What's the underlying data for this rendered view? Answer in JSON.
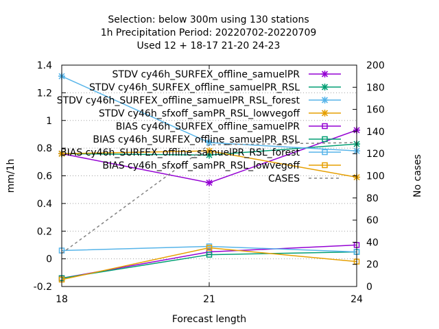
{
  "chart_data": {
    "type": "line",
    "title_lines": [
      "Selection: below 300m using   130 stations",
      "1h Precipitation   Period: 20220702-20220709",
      "Used  12 + 18-17 21-20 24-23"
    ],
    "xlabel": "Forecast length",
    "ylabel": "mm/1h",
    "y2label": "No cases",
    "x": [
      18,
      21,
      24
    ],
    "x_ticks": [
      "18",
      "21",
      "24"
    ],
    "xlim": [
      18,
      24
    ],
    "ylim": [
      -0.2,
      1.4
    ],
    "y_ticks": [
      "-0.2",
      "0",
      "0.2",
      "0.4",
      "0.6",
      "0.8",
      "1",
      "1.2",
      "1.4"
    ],
    "y2lim": [
      0,
      200
    ],
    "y2_ticks": [
      "0",
      "20",
      "40",
      "60",
      "80",
      "100",
      "120",
      "140",
      "160",
      "180",
      "200"
    ],
    "grid": true,
    "legend_position": "top-right",
    "series": [
      {
        "name": "STDV cy46h_SURFEX_offline_samuelPR",
        "color": "#9400d3",
        "marker": "x",
        "axis": "y",
        "values": [
          0.76,
          0.55,
          0.93
        ]
      },
      {
        "name": "STDV cy46h_SURFEX_offline_samuelPR_RSL",
        "color": "#009e73",
        "marker": "x",
        "axis": "y",
        "values": [
          0.76,
          0.75,
          0.83
        ]
      },
      {
        "name": "STDV cy46h_SURFEX_offline_samuelPR_RSL_forest",
        "color": "#56b4e9",
        "marker": "x",
        "axis": "y",
        "values": [
          1.32,
          0.84,
          0.78
        ]
      },
      {
        "name": "STDV cy46h_sfxoff_samPR_RSL_lowvegoff",
        "color": "#e69f00",
        "marker": "x",
        "axis": "y",
        "values": [
          0.76,
          0.78,
          0.59
        ]
      },
      {
        "name": "BIAS cy46h_SURFEX_offline_samuelPR",
        "color": "#9400d3",
        "marker": "square",
        "axis": "y",
        "values": [
          -0.14,
          0.05,
          0.1
        ]
      },
      {
        "name": "BIAS cy46h_SURFEX_offline_samuelPR_RSL",
        "color": "#009e73",
        "marker": "square",
        "axis": "y",
        "values": [
          -0.14,
          0.03,
          0.05
        ]
      },
      {
        "name": "BIAS cy46h_SURFEX_offline_samuelPR_RSL_forest",
        "color": "#56b4e9",
        "marker": "square",
        "axis": "y",
        "values": [
          0.06,
          0.09,
          0.05
        ]
      },
      {
        "name": "BIAS cy46h_sfxoff_samPR_RSL_lowvegoff",
        "color": "#e69f00",
        "marker": "square",
        "axis": "y",
        "values": [
          -0.15,
          0.08,
          -0.02
        ]
      },
      {
        "name": "CASES",
        "color": "#808080",
        "marker": "none",
        "dashed": true,
        "axis": "y2",
        "values": [
          30,
          128,
          130
        ]
      }
    ]
  }
}
